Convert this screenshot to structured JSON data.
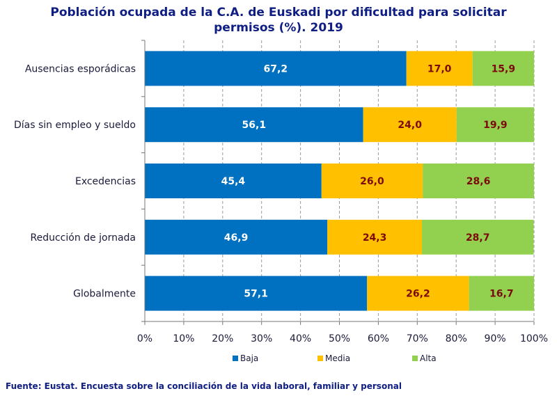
{
  "chart_data": {
    "type": "bar",
    "orientation": "horizontal",
    "stacked": true,
    "title_lines": [
      "Población  ocupada de la C.A. de Euskadi por dificultad  para solicitar",
      "permisos  (%). 2019"
    ],
    "categories": [
      "Ausencias esporádicas",
      "Días sin empleo y sueldo",
      "Excedencias",
      "Reducción de jornada",
      "Globalmente"
    ],
    "series": [
      {
        "name": "Baja",
        "color": "#0070c0",
        "label_color": "#ffffff",
        "values": [
          67.2,
          56.1,
          45.4,
          46.9,
          57.1
        ],
        "labels": [
          "67,2",
          "56,1",
          "45,4",
          "46,9",
          "57,1"
        ]
      },
      {
        "name": "Media",
        "color": "#ffc000",
        "label_color": "#7b0a0a",
        "values": [
          17.0,
          24.0,
          26.0,
          24.3,
          26.2
        ],
        "labels": [
          "17,0",
          "24,0",
          "26,0",
          "24,3",
          "26,2"
        ]
      },
      {
        "name": "Alta",
        "color": "#92d050",
        "label_color": "#7b0a0a",
        "values": [
          15.9,
          19.9,
          28.6,
          28.7,
          16.7
        ],
        "labels": [
          "15,9",
          "19,9",
          "28,6",
          "28,7",
          "16,7"
        ]
      }
    ],
    "xlim": [
      0,
      100
    ],
    "xticks": [
      "0%",
      "10%",
      "20%",
      "30%",
      "40%",
      "50%",
      "60%",
      "70%",
      "80%",
      "90%",
      "100%"
    ],
    "grid": "vertical dashed",
    "legend": "bottom",
    "source": "Fuente: Eustat. Encuesta sobre la conciliación  de la vida laboral, familiar y personal"
  }
}
